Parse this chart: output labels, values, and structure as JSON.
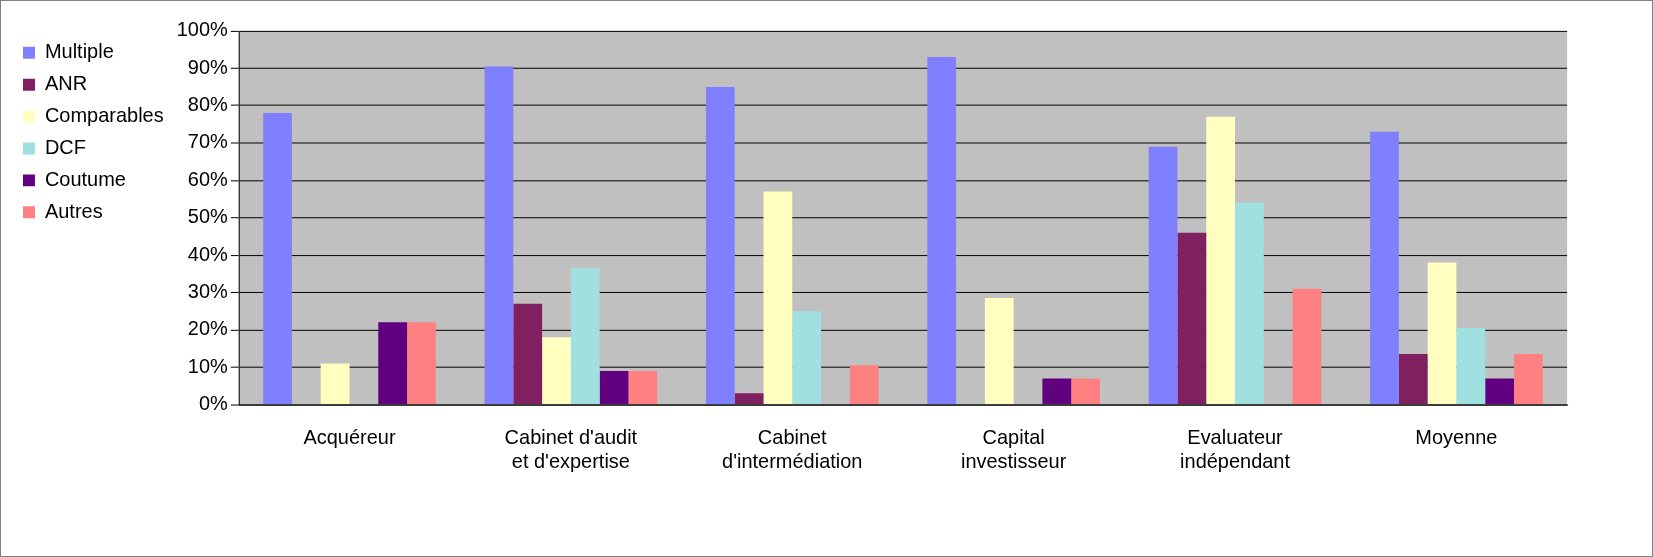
{
  "chart_data": {
    "type": "bar",
    "categories": [
      "Acquéreur",
      "Cabinet d'audit et d'expertise",
      "Cabinet d'intermédiation",
      "Capital investisseur",
      "Evaluateur indépendant",
      "Moyenne"
    ],
    "series": [
      {
        "name": "Multiple",
        "color": "#8080ff",
        "values": [
          78,
          90.5,
          85,
          93,
          69,
          73
        ]
      },
      {
        "name": "ANR",
        "color": "#802060",
        "values": [
          null,
          27,
          3,
          null,
          46,
          13.5
        ]
      },
      {
        "name": "Comparables",
        "color": "#ffffc0",
        "values": [
          11,
          18,
          57,
          28.5,
          77,
          38
        ]
      },
      {
        "name": "DCF",
        "color": "#a0e0e0",
        "values": [
          null,
          36.5,
          25,
          null,
          54,
          20.5
        ]
      },
      {
        "name": "Coutume",
        "color": "#600080",
        "values": [
          22,
          9,
          null,
          7,
          null,
          7
        ]
      },
      {
        "name": "Autres",
        "color": "#ff8080",
        "values": [
          22,
          9,
          10.5,
          7,
          31,
          13.5
        ]
      }
    ],
    "ylim": [
      0,
      100
    ],
    "yticks": [
      {
        "value": 0,
        "label": "0%"
      },
      {
        "value": 10,
        "label": "10%"
      },
      {
        "value": 20,
        "label": "20%"
      },
      {
        "value": 30,
        "label": "30%"
      },
      {
        "value": 40,
        "label": "40%"
      },
      {
        "value": 50,
        "label": "50%"
      },
      {
        "value": 60,
        "label": "60%"
      },
      {
        "value": 70,
        "label": "70%"
      },
      {
        "value": 80,
        "label": "80%"
      },
      {
        "value": 90,
        "label": "90%"
      },
      {
        "value": 100,
        "label": "100%"
      }
    ],
    "grid": "y",
    "legend": "left"
  }
}
